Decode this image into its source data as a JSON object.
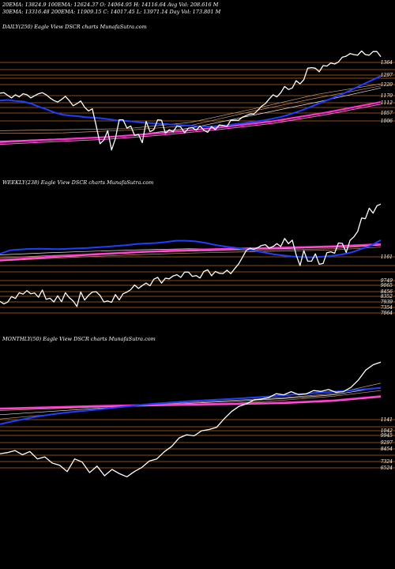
{
  "header": {
    "line1": "20EMA: 13824.9     100EMA: 12624.37     O: 14064.95     H: 14116.64  Avg Vol: 208.616  M",
    "line2": "30EMA: 13316.48   200EMA: 11909.15     C: 14017.45     L: 13971.14   Day Vol: 173.801 M"
  },
  "colors": {
    "background": "#000000",
    "price": "#ffffff",
    "ema_blue": "#1f3fff",
    "ema_magenta": "#ff33cc",
    "level_line": "#b8641a",
    "ema_thin": "#d8c0a0"
  },
  "chart_data": [
    {
      "type": "line",
      "title": "DAILY(250) Eagle   View  DSCR charts MunafaSutra.com",
      "y_tick_labels": [
        "1364",
        "1297",
        "1220",
        "1170",
        "1112",
        "1057",
        "1006"
      ],
      "series": [
        {
          "values": [
            13320,
            13330,
            13280,
            13230,
            13290,
            13250,
            13310,
            13290,
            13230,
            13270,
            13310,
            13330,
            13290,
            13230,
            13180,
            13150,
            13200,
            13260,
            13180,
            13080,
            13120,
            13170,
            13050,
            12980,
            13020,
            12700,
            12350,
            12420,
            12600,
            12230,
            12450,
            12810,
            12810,
            12650,
            12690,
            12510,
            12530,
            12370,
            12780,
            12580,
            12620,
            12810,
            12800,
            12550,
            12620,
            12580,
            12690,
            12670,
            12560,
            12650,
            12660,
            12610,
            12690,
            12610,
            12570,
            12680,
            12620,
            12710,
            12700,
            12680,
            12800,
            12800,
            12800,
            12860,
            12890,
            12920,
            12920,
            12990,
            13070,
            13120,
            13210,
            13290,
            13250,
            13330,
            13450,
            13390,
            13420,
            13560,
            13500,
            13580,
            13800,
            13810,
            13800,
            13730,
            13850,
            13840,
            13900,
            13880,
            13920,
            14010,
            14030,
            14080,
            14060,
            14050,
            14130,
            14060,
            14050,
            14120,
            14120,
            14020
          ]
        },
        {
          "values": [
            13180,
            13190,
            13170,
            13160,
            13120,
            13060,
            13010,
            12950,
            12910,
            12890,
            12880,
            12860,
            12850,
            12840,
            12820,
            12800,
            12790,
            12780,
            12760,
            12750,
            12740,
            12730,
            12720,
            12710,
            12700,
            12690,
            12680,
            12680,
            12690,
            12700,
            12720,
            12740,
            12760,
            12780,
            12800,
            12830,
            12860,
            12900,
            12950,
            13000,
            13060,
            13120,
            13180,
            13240,
            13300,
            13370,
            13440,
            13510,
            13580,
            13650
          ]
        }
      ]
    },
    {
      "type": "line",
      "title": "WEEKLY(238) Eagle   View  DSCR charts MunafaSutra.com",
      "y_tick_labels": [
        "1161",
        "9749",
        "9065",
        "8456",
        "8352",
        "7939",
        "7354",
        "7064"
      ],
      "series": [
        {
          "values": [
            7330,
            7200,
            7290,
            7560,
            7470,
            7750,
            7680,
            7850,
            7700,
            7740,
            7530,
            7880,
            7430,
            7480,
            7300,
            7600,
            7310,
            7750,
            7510,
            7350,
            7080,
            7790,
            7390,
            7620,
            7780,
            7800,
            7620,
            7300,
            7350,
            7280,
            7660,
            7400,
            7700,
            7780,
            7900,
            8130,
            7960,
            8100,
            8220,
            8090,
            8410,
            8500,
            8220,
            8460,
            8430,
            8570,
            8630,
            8500,
            8760,
            8760,
            8550,
            8590,
            8470,
            8790,
            8870,
            8580,
            8790,
            8700,
            8690,
            8850,
            8680,
            8920,
            9150,
            9470,
            9810,
            9920,
            9870,
            9950,
            10060,
            10100,
            9930,
            10010,
            10150,
            10010,
            10400,
            10150,
            10320,
            9600,
            9080,
            9810,
            9290,
            9290,
            9650,
            9140,
            9180,
            9710,
            9750,
            9680,
            10180,
            10160,
            9720,
            10310,
            10480,
            10750,
            11400,
            11370,
            11880,
            11640,
            12000,
            12080
          ]
        },
        {
          "values": [
            9650,
            9820,
            9860,
            9890,
            9900,
            9890,
            9880,
            9900,
            9920,
            9940,
            9970,
            10000,
            10040,
            10080,
            10130,
            10160,
            10180,
            10230,
            10290,
            10290,
            10260,
            10190,
            10090,
            10010,
            9950,
            9880,
            9810,
            9720,
            9630,
            9570,
            9520,
            9490,
            9480,
            9510,
            9550,
            9620,
            9720,
            9890,
            10050,
            10320
          ]
        }
      ]
    },
    {
      "type": "line",
      "title": "MONTHLY(50) Eagle   View  DSCR charts MunafaSutra.com",
      "y_tick_labels": [
        "1141",
        "1042",
        "9945",
        "9297",
        "8454",
        "7324",
        "6524"
      ],
      "series": [
        {
          "values": [
            7550,
            7600,
            7700,
            7500,
            7650,
            7300,
            7400,
            7100,
            7000,
            6700,
            7300,
            7150,
            6650,
            6960,
            6500,
            6800,
            6600,
            6450,
            6700,
            6900,
            7200,
            7300,
            7640,
            7900,
            8300,
            8450,
            8400,
            8640,
            8700,
            8800,
            9200,
            9550,
            9800,
            9920,
            10100,
            10150,
            10220,
            10400,
            10350,
            10500,
            10360,
            10390,
            10550,
            10510,
            10600,
            10470,
            10500,
            10700,
            11050,
            11530,
            11780,
            11900
          ]
        },
        {
          "values": [
            8950,
            9080,
            9190,
            9300,
            9390,
            9470,
            9530,
            9580,
            9640,
            9700,
            9760,
            9820,
            9880,
            9930,
            9970,
            10010,
            10050,
            10080,
            10110,
            10140,
            10170,
            10210,
            10250,
            10290,
            10330,
            10380,
            10420,
            10460,
            10500,
            10540,
            10590,
            10630,
            10680
          ]
        }
      ]
    }
  ]
}
